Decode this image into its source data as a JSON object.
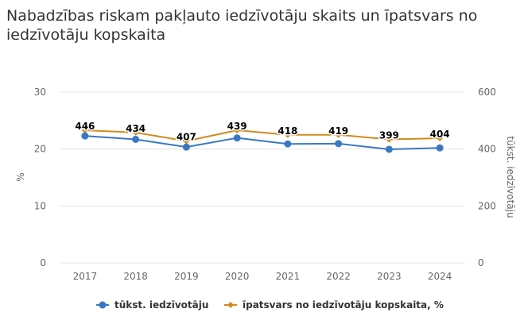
{
  "chart_data": {
    "type": "line",
    "title": "Nabadzības riskam pakļauto iedzīvotāju skaits un īpatsvars no iedzīvotāju kopskaita",
    "categories": [
      "2017",
      "2018",
      "2019",
      "2020",
      "2021",
      "2022",
      "2023",
      "2024"
    ],
    "y_left": {
      "label": "%",
      "range": [
        0,
        30
      ],
      "ticks": [
        "0",
        "10",
        "20",
        "30"
      ]
    },
    "y_right": {
      "label": "tūkst. iedzīvotāju",
      "range": [
        0,
        600
      ],
      "ticks": [
        "0",
        "200",
        "400",
        "600"
      ]
    },
    "grid": true,
    "legend": "bottom",
    "series": [
      {
        "name": "tūkst. iedzīvotāju",
        "axis": "right",
        "color": "#3a78c3",
        "marker": "circle",
        "values": [
          446,
          434,
          407,
          439,
          418,
          419,
          399,
          404
        ],
        "labels": [
          "446",
          "434",
          "407",
          "439",
          "418",
          "419",
          "399",
          "404"
        ]
      },
      {
        "name": "īpatsvars no iedzīvotāju kopskaita, %",
        "axis": "left",
        "color": "#d18b1f",
        "marker": "diamond",
        "values": [
          23.3,
          22.9,
          21.4,
          23.3,
          22.5,
          22.5,
          21.7,
          21.9
        ]
      }
    ]
  }
}
